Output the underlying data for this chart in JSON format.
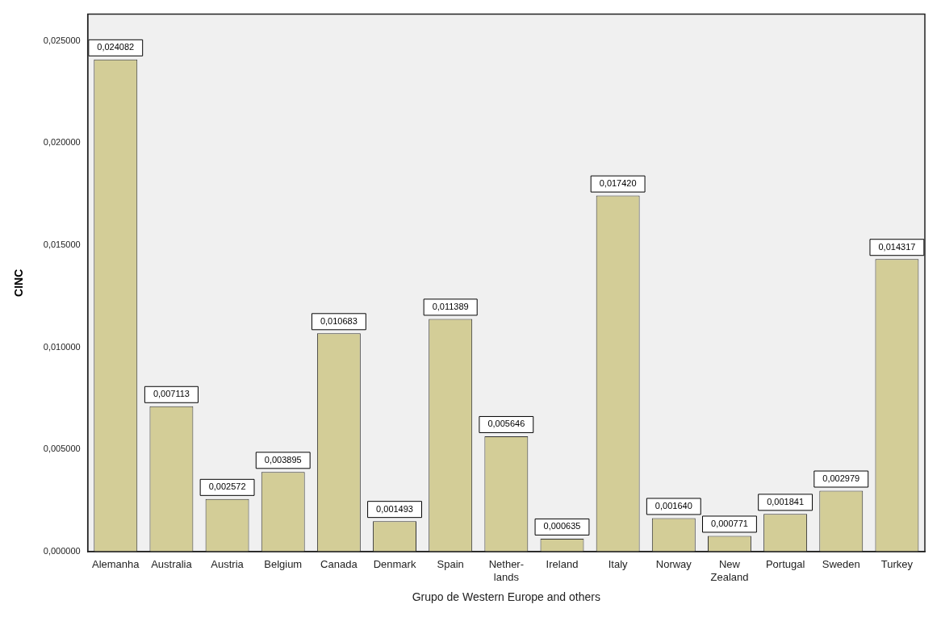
{
  "chart_data": {
    "type": "bar",
    "xlabel": "Grupo de Western Europe and others",
    "ylabel": "CINC",
    "categories": [
      "Alemanha",
      "Australia",
      "Austria",
      "Belgium",
      "Canada",
      "Denmark",
      "Spain",
      "Nether-\nlands",
      "Ireland",
      "Italy",
      "Norway",
      "New\nZealand",
      "Portugal",
      "Sweden",
      "Turkey"
    ],
    "values": [
      0.024082,
      0.007113,
      0.002572,
      0.003895,
      0.010683,
      0.001493,
      0.011389,
      0.005646,
      0.000635,
      0.01742,
      0.00164,
      0.000771,
      0.001841,
      0.002979,
      0.014317
    ],
    "value_labels": [
      "0,024082",
      "0,007113",
      "0,002572",
      "0,003895",
      "0,010683",
      "0,001493",
      "0,011389",
      "0,005646",
      "0,000635",
      "0,017420",
      "0,001640",
      "0,000771",
      "0,001841",
      "0,002979",
      "0,014317"
    ],
    "color": "#d3cd97",
    "ylim": [
      0,
      0.0263
    ],
    "yticks": [
      {
        "value": 0,
        "label": "0,000000"
      },
      {
        "value": 0.005,
        "label": "0,005000"
      },
      {
        "value": 0.01,
        "label": "0,010000"
      },
      {
        "value": 0.015,
        "label": "0,015000"
      },
      {
        "value": 0.02,
        "label": "0,020000"
      },
      {
        "value": 0.025,
        "label": "0,025000"
      }
    ],
    "grid": false,
    "legend": false
  }
}
